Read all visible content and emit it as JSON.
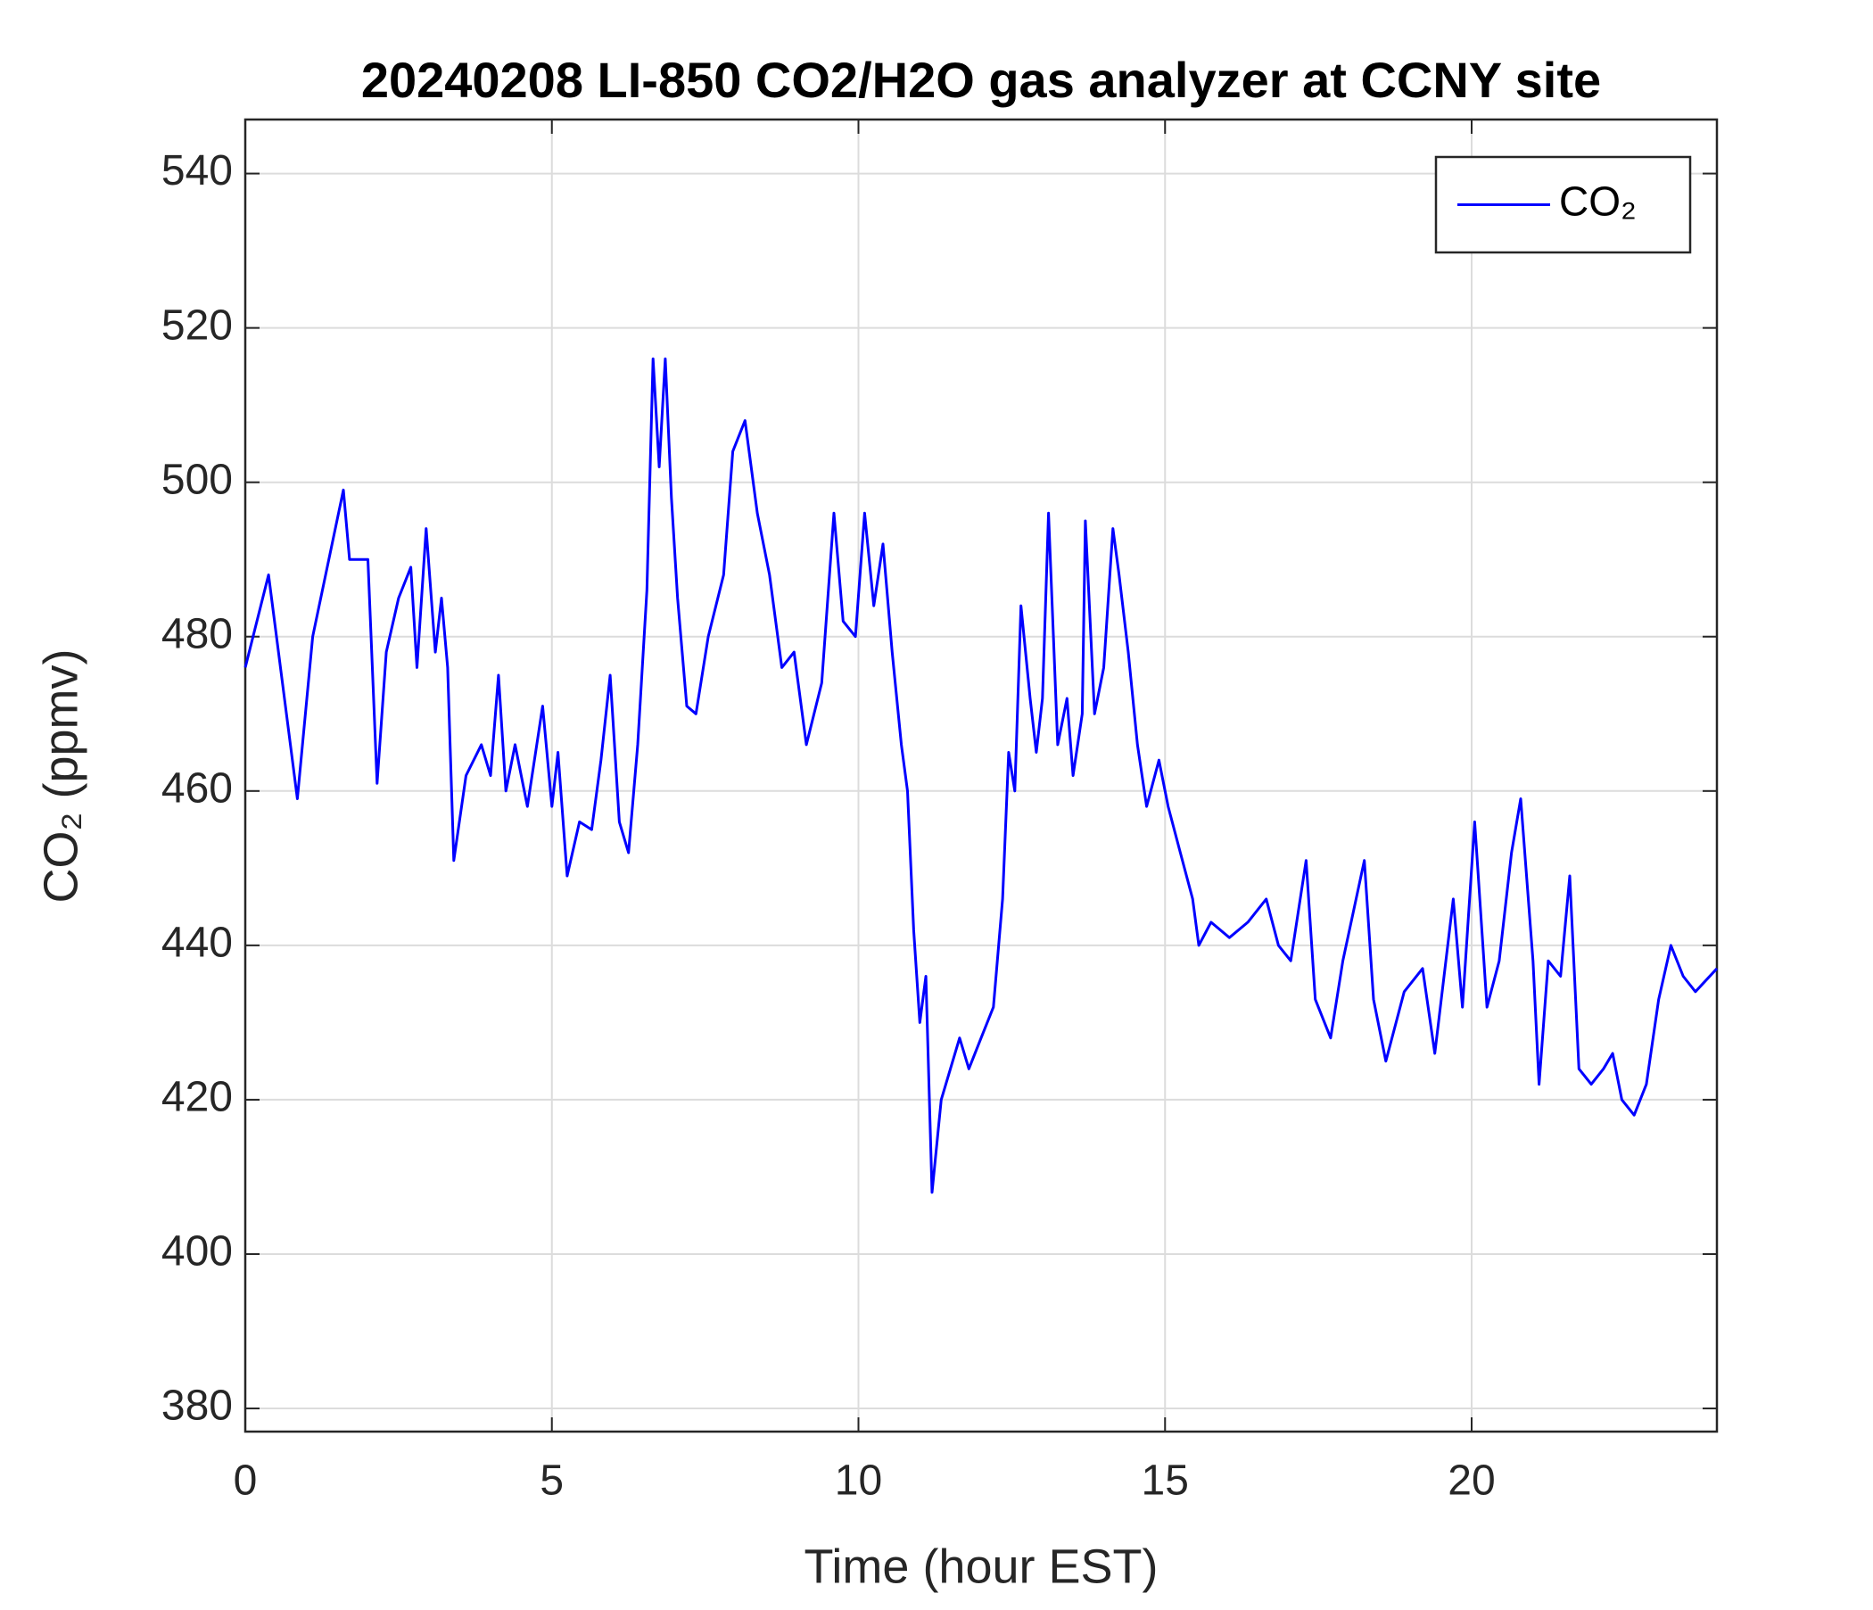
{
  "chart_data": {
    "type": "line",
    "title": "20240208 LI-850 CO2/H2O gas analyzer at CCNY site",
    "x_label": "Time (hour EST)",
    "y_label": "CO₂ (ppmv)",
    "xlim": [
      0,
      24
    ],
    "ylim": [
      377,
      547
    ],
    "xticks": [
      0,
      5,
      10,
      15,
      20
    ],
    "yticks": [
      380,
      400,
      420,
      440,
      460,
      480,
      500,
      520,
      540
    ],
    "grid": true,
    "legend": "top-right",
    "x": [
      0,
      0.38,
      0.85,
      1.1,
      1.6,
      1.7,
      2.0,
      2.15,
      2.3,
      2.5,
      2.7,
      2.8,
      2.95,
      3.1,
      3.2,
      3.3,
      3.4,
      3.6,
      3.85,
      4.0,
      4.13,
      4.25,
      4.4,
      4.6,
      4.85,
      5.0,
      5.1,
      5.25,
      5.45,
      5.65,
      5.8,
      5.95,
      6.1,
      6.25,
      6.4,
      6.55,
      6.65,
      6.75,
      6.85,
      6.95,
      7.05,
      7.2,
      7.35,
      7.55,
      7.8,
      7.95,
      8.15,
      8.35,
      8.55,
      8.75,
      8.95,
      9.15,
      9.4,
      9.6,
      9.75,
      9.95,
      10.1,
      10.25,
      10.4,
      10.55,
      10.7,
      10.8,
      10.9,
      11.0,
      11.1,
      11.2,
      11.35,
      11.5,
      11.65,
      11.8,
      12.0,
      12.2,
      12.35,
      12.45,
      12.55,
      12.65,
      12.8,
      12.9,
      13.0,
      13.1,
      13.25,
      13.4,
      13.5,
      13.65,
      13.7,
      13.85,
      14.0,
      14.15,
      14.25,
      14.4,
      14.55,
      14.7,
      14.9,
      15.05,
      15.25,
      15.45,
      15.55,
      15.75,
      16.05,
      16.35,
      16.65,
      16.85,
      17.05,
      17.3,
      17.45,
      17.7,
      17.9,
      18.25,
      18.4,
      18.6,
      18.9,
      19.2,
      19.4,
      19.7,
      19.85,
      20.05,
      20.25,
      20.45,
      20.65,
      20.8,
      21.0,
      21.1,
      21.25,
      21.45,
      21.6,
      21.75,
      21.95,
      22.15,
      22.3,
      22.45,
      22.65,
      22.85,
      23.05,
      23.25,
      23.45,
      23.65,
      24.0
    ],
    "series": [
      {
        "name": "CO₂",
        "color": "#0000ff",
        "values": [
          476,
          488,
          459,
          480,
          499,
          490,
          490,
          461,
          478,
          485,
          489,
          476,
          494,
          478,
          485,
          476,
          451,
          462,
          466,
          462,
          475,
          460,
          466,
          458,
          471,
          458,
          465,
          449,
          456,
          455,
          464,
          475,
          456,
          452,
          466,
          486,
          516,
          502,
          516,
          498,
          485,
          471,
          470,
          480,
          488,
          504,
          508,
          496,
          488,
          476,
          478,
          466,
          474,
          496,
          482,
          480,
          496,
          484,
          492,
          478,
          466,
          460,
          442,
          430,
          436,
          408,
          420,
          424,
          428,
          424,
          428,
          432,
          446,
          465,
          460,
          484,
          472,
          465,
          472,
          496,
          466,
          472,
          462,
          470,
          495,
          470,
          476,
          494,
          488,
          478,
          466,
          458,
          464,
          458,
          452,
          446,
          440,
          443,
          441,
          443,
          446,
          440,
          438,
          451,
          433,
          428,
          438,
          451,
          433,
          425,
          434,
          437,
          426,
          446,
          432,
          456,
          432,
          438,
          452,
          459,
          438,
          422,
          438,
          436,
          449,
          424,
          422,
          424,
          426,
          420,
          418,
          422,
          433,
          440,
          436,
          434,
          437
        ]
      }
    ]
  }
}
